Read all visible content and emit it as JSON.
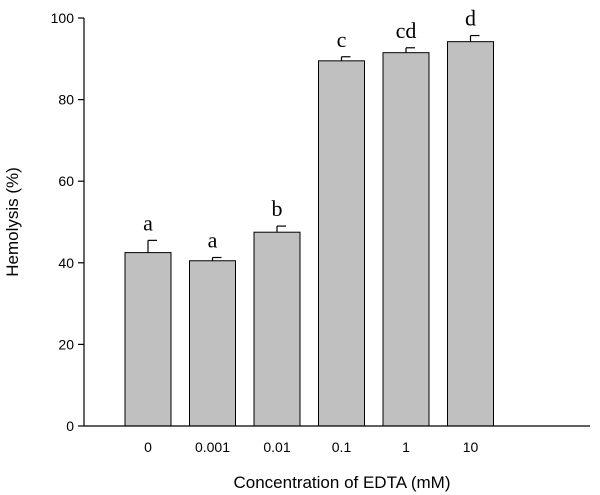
{
  "chart_data": {
    "type": "bar",
    "categories": [
      "0",
      "0.001",
      "0.01",
      "0.1",
      "1",
      "10"
    ],
    "values": [
      42.5,
      40.5,
      47.5,
      89.5,
      91.5,
      94.2
    ],
    "errors": [
      3.0,
      0.8,
      1.5,
      1.0,
      1.2,
      1.5
    ],
    "significance_labels": [
      "a",
      "a",
      "b",
      "c",
      "cd",
      "d"
    ],
    "xlabel": "Concentration of EDTA (mM)",
    "ylabel": "Hemolysis (%)",
    "ylim": [
      0,
      100
    ],
    "yticks": [
      0,
      20,
      40,
      60,
      80,
      100
    ],
    "bar_color": "#c0c0c0",
    "grid": false,
    "legend": "none"
  }
}
